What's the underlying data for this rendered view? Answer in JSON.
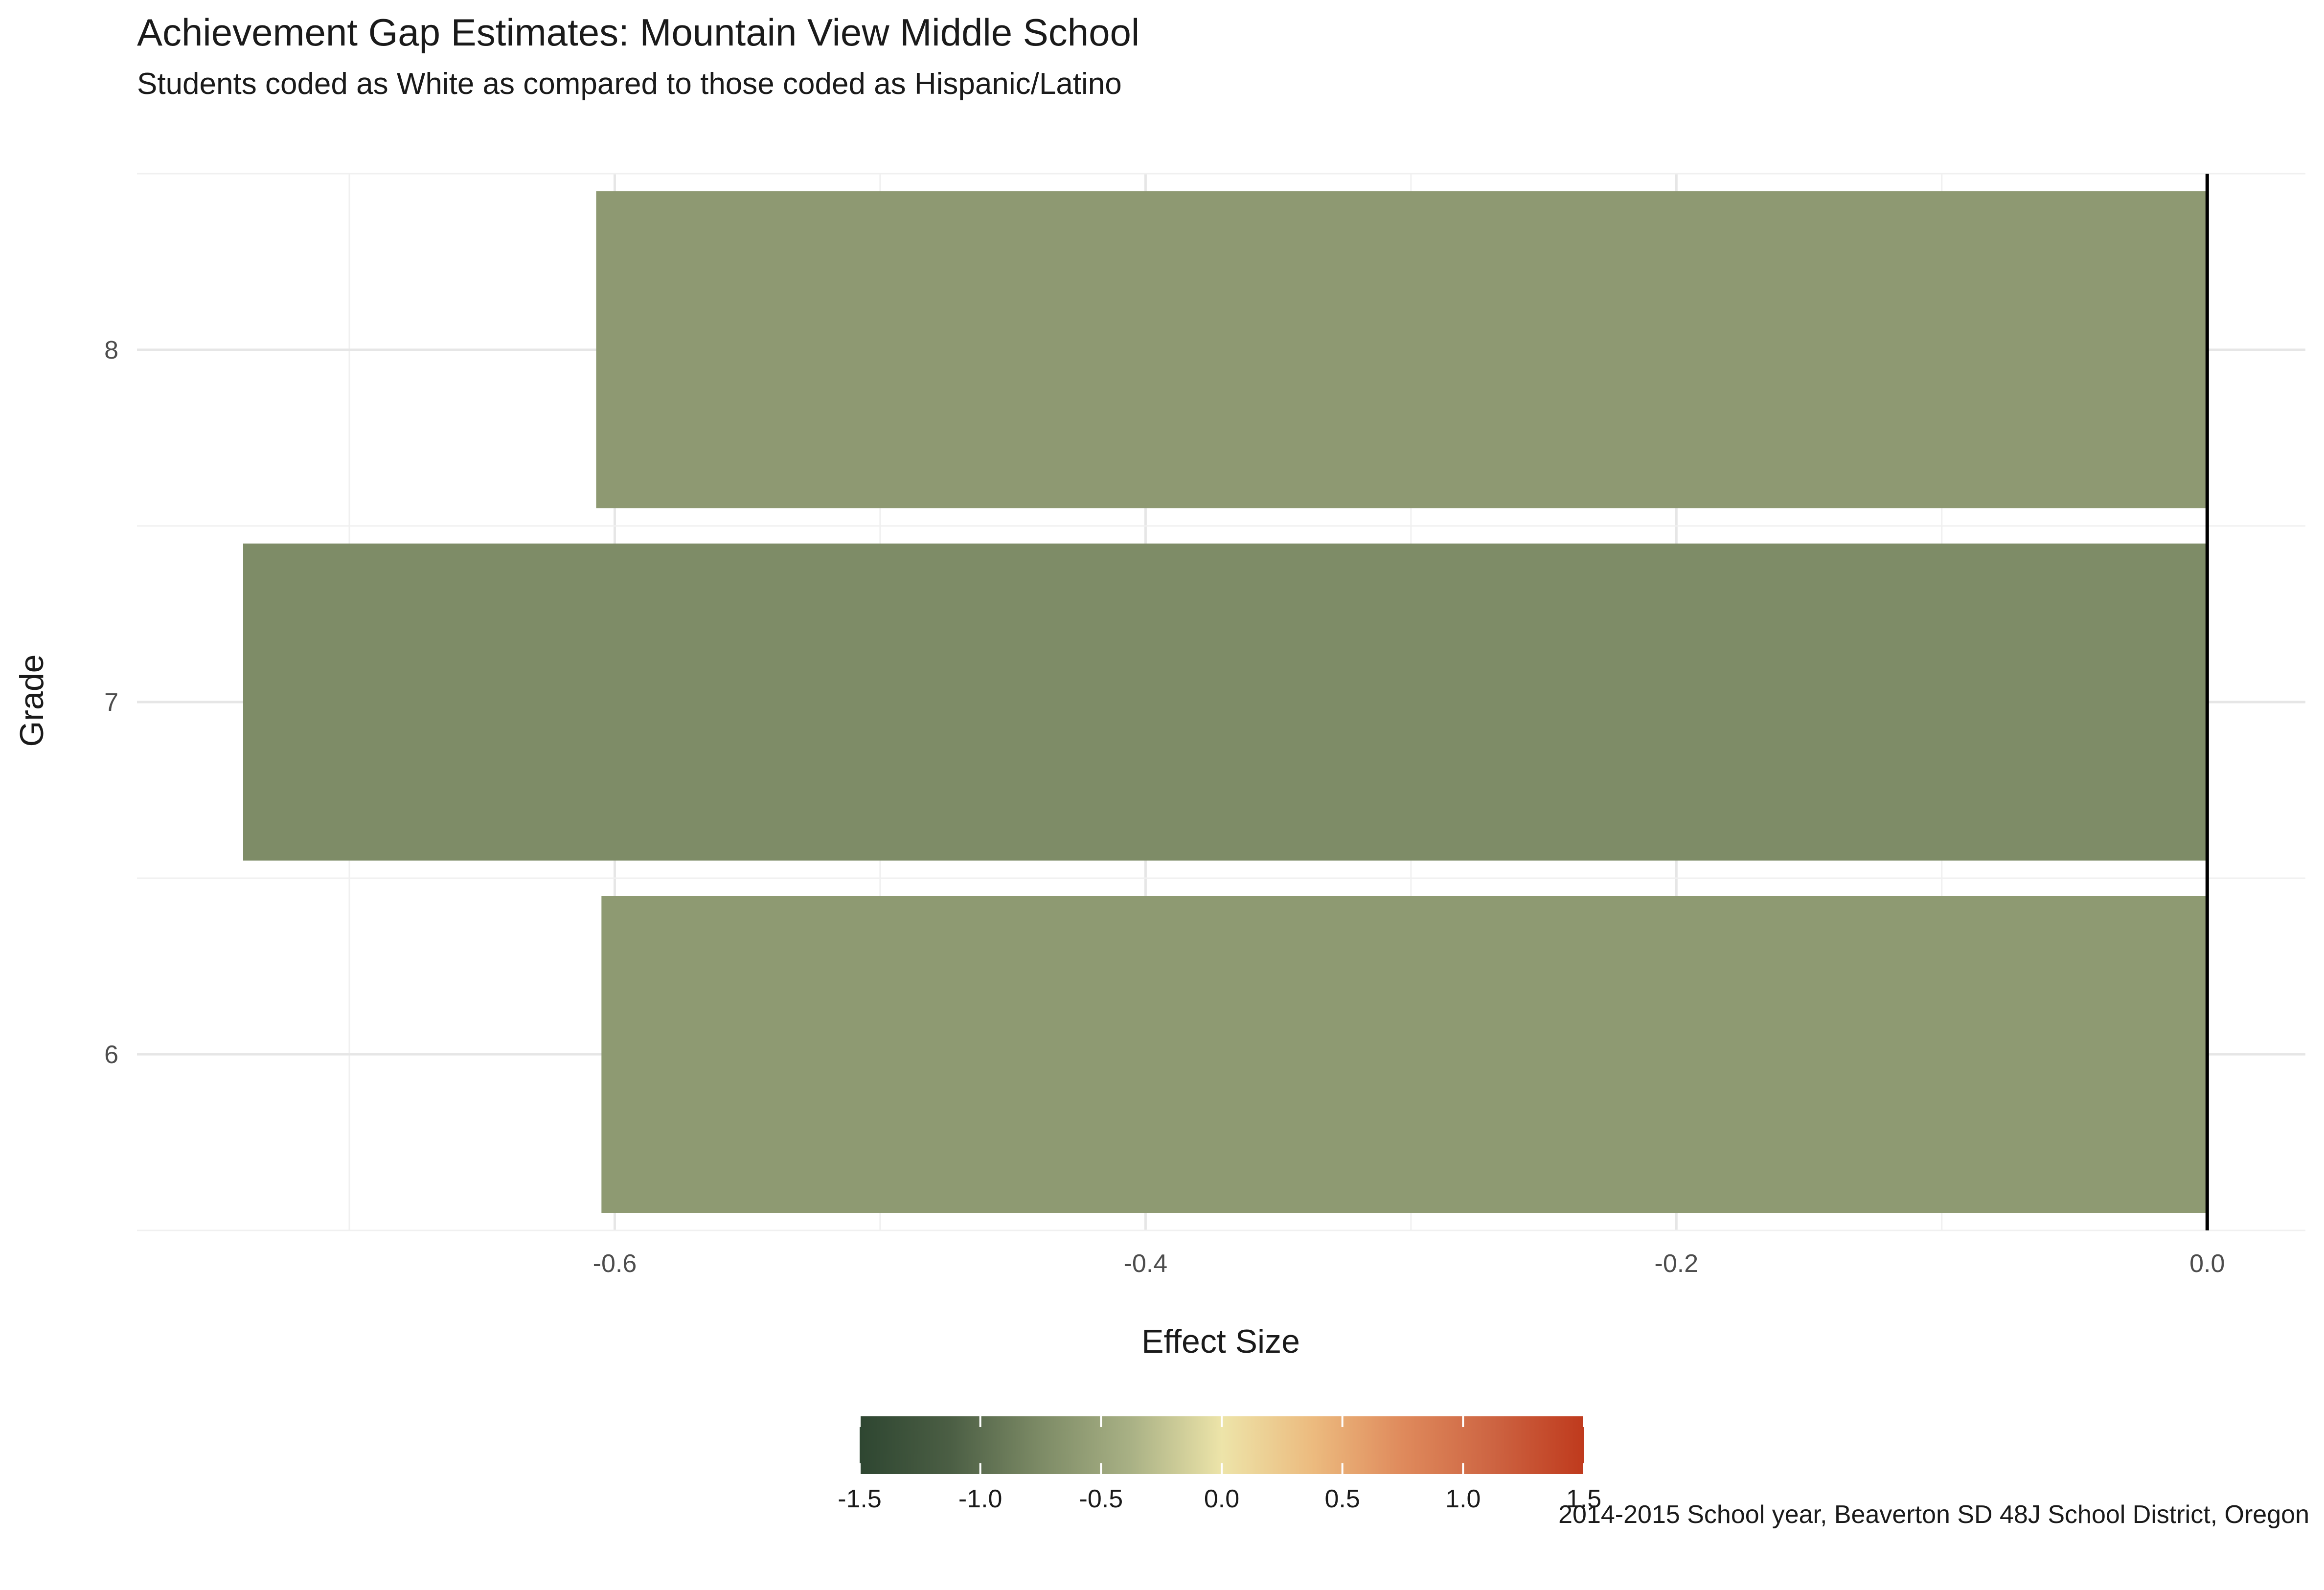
{
  "chart_data": {
    "type": "bar",
    "orientation": "horizontal",
    "title": "Achievement Gap Estimates: Mountain View Middle School",
    "subtitle": "Students coded as White as compared to those coded as Hispanic/Latino",
    "xlabel": "Effect Size",
    "ylabel": "Grade",
    "categories": [
      "8",
      "7",
      "6"
    ],
    "values": [
      -0.607,
      -0.74,
      -0.605
    ],
    "xlim": [
      -0.78,
      0.037
    ],
    "x_ticks": [
      -0.6,
      -0.4,
      -0.2,
      0.0
    ],
    "x_tick_labels": [
      "-0.6",
      "-0.4",
      "-0.2",
      "0.0"
    ],
    "grid": true,
    "reference_line_x": 0,
    "bar_color_scale": {
      "title": "",
      "range": [
        -1.5,
        1.5
      ],
      "ticks": [
        -1.5,
        -1.0,
        -0.5,
        0.0,
        0.5,
        1.0,
        1.5
      ],
      "tick_labels": [
        "-1.5",
        "-1.0",
        "-0.5",
        "0.0",
        "0.5",
        "1.0",
        "1.5"
      ],
      "colors": [
        "#2e4631",
        "#4b5e44",
        "#7d8b66",
        "#a9b185",
        "#ede4a9",
        "#ecbb7f",
        "#df8a5c",
        "#cd6442",
        "#bf3a1d"
      ],
      "position": "bottom"
    },
    "caption": "2014-2015 School year, Beaverton SD 48J School District, Oregon"
  }
}
